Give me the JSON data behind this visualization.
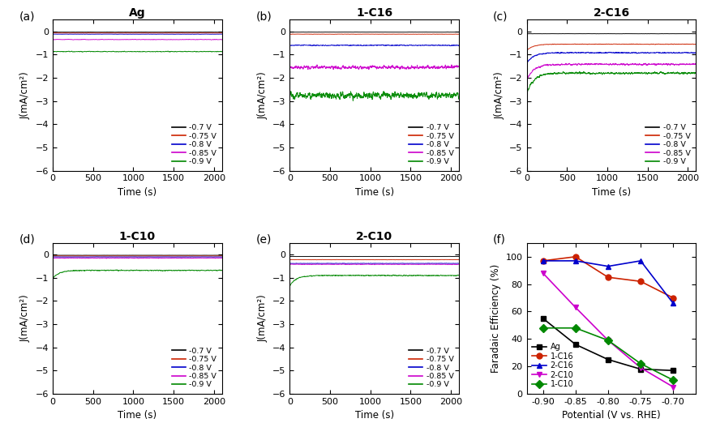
{
  "titles": [
    "Ag",
    "1-C16",
    "2-C16",
    "1-C10",
    "2-C10"
  ],
  "line_colors": [
    "#000000",
    "#cc2200",
    "#0000cc",
    "#cc00cc",
    "#008800"
  ],
  "voltage_labels": [
    "-0.7 V",
    "-0.75 V",
    "-0.8 V",
    "-0.85 V",
    "-0.9 V"
  ],
  "ylim": [
    -6,
    0.5
  ],
  "yticks": [
    0,
    -1,
    -2,
    -3,
    -4,
    -5,
    -6
  ],
  "xlim": [
    0,
    2100
  ],
  "xticks": [
    0,
    500,
    1000,
    1500,
    2000
  ],
  "ylabel": "J(mA/cm²)",
  "xlabel": "Time (s)",
  "panel_f_xlabel": "Potential (V vs. RHE)",
  "panel_f_ylabel": "Faradaic Efficiency (%)",
  "panel_f_ylim": [
    0,
    110
  ],
  "panel_f_xlim": [
    -0.925,
    -0.665
  ],
  "panel_f_xticks": [
    -0.9,
    -0.85,
    -0.8,
    -0.75,
    -0.7
  ],
  "panel_f_yticks": [
    0,
    20,
    40,
    60,
    80,
    100
  ],
  "fe_series_labels": [
    "Ag",
    "1-C16",
    "2-C16",
    "2-C10",
    "1-C10"
  ],
  "fe_series_colors": [
    "#000000",
    "#cc2200",
    "#0000cc",
    "#cc00cc",
    "#008800"
  ],
  "fe_series_markers": [
    "s",
    "o",
    "^",
    "v",
    "D"
  ],
  "fe_data": {
    "Ag": {
      "x": [
        -0.9,
        -0.85,
        -0.8,
        -0.75,
        -0.7
      ],
      "y": [
        55,
        36,
        25,
        18,
        17
      ]
    },
    "1-C16": {
      "x": [
        -0.9,
        -0.85,
        -0.8,
        -0.75,
        -0.7
      ],
      "y": [
        97,
        100,
        85,
        82,
        70
      ]
    },
    "2-C16": {
      "x": [
        -0.9,
        -0.85,
        -0.8,
        -0.75,
        -0.7
      ],
      "y": [
        97,
        97,
        93,
        97,
        66
      ]
    },
    "2-C10": {
      "x": [
        -0.9,
        -0.85,
        -0.8,
        -0.75,
        -0.7
      ],
      "y": [
        88,
        63,
        39,
        19,
        5
      ]
    },
    "1-C10": {
      "x": [
        -0.9,
        -0.85,
        -0.8,
        -0.75,
        -0.7
      ],
      "y": [
        48,
        48,
        39,
        22,
        10
      ]
    }
  },
  "panel_data": {
    "a": {
      "currents": [
        -0.03,
        -0.07,
        -0.12,
        -0.35,
        -0.87
      ],
      "noises": [
        0.004,
        0.005,
        0.007,
        0.012,
        0.018
      ],
      "init_spike": [
        false,
        false,
        false,
        false,
        false
      ]
    },
    "b": {
      "currents": [
        -0.03,
        -0.12,
        -0.6,
        -1.55,
        -2.75
      ],
      "noises": [
        0.004,
        0.008,
        0.025,
        0.1,
        0.2
      ],
      "init_spike": [
        false,
        false,
        false,
        false,
        false
      ]
    },
    "c": {
      "currents": [
        -0.1,
        -0.55,
        -0.92,
        -1.42,
        -1.8
      ],
      "noises": [
        0.005,
        0.015,
        0.03,
        0.05,
        0.06
      ],
      "init_spike": [
        true,
        true,
        true,
        true,
        true
      ]
    },
    "d": {
      "currents": [
        -0.03,
        -0.06,
        -0.1,
        -0.15,
        -0.68
      ],
      "noises": [
        0.003,
        0.004,
        0.005,
        0.015,
        0.025
      ],
      "init_spike": [
        false,
        false,
        false,
        false,
        true
      ]
    },
    "e": {
      "currents": [
        -0.08,
        -0.22,
        -0.38,
        -0.42,
        -0.9
      ],
      "noises": [
        0.004,
        0.008,
        0.012,
        0.015,
        0.025
      ],
      "init_spike": [
        false,
        false,
        false,
        false,
        true
      ]
    }
  }
}
